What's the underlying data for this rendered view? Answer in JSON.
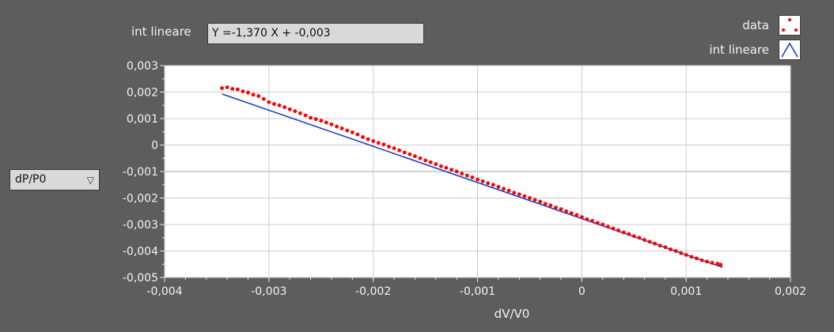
{
  "fit": {
    "label": "int lineare",
    "expression": "Y =-1,370 X +  -0,003"
  },
  "legend": {
    "items": [
      {
        "label": "data",
        "color": "#ff0000",
        "icon": "scatter-dots-icon"
      },
      {
        "label": "int lineare",
        "color": "#1f3fbf",
        "icon": "line-peak-icon"
      }
    ]
  },
  "y_selector": {
    "value": "dP/P0",
    "icon": "triangle-down-icon"
  },
  "chart_data": {
    "type": "scatter",
    "xlabel": "dV/V0",
    "ylabel": "",
    "xlim": [
      -0.004,
      0.002
    ],
    "ylim": [
      -0.005,
      0.003
    ],
    "x_ticks": [
      -0.004,
      -0.003,
      -0.002,
      -0.001,
      0,
      0.001,
      0.002
    ],
    "x_tick_labels": [
      "-0,004",
      "-0,003",
      "-0,002",
      "-0,001",
      "0",
      "0,001",
      "0,002"
    ],
    "y_ticks": [
      0.003,
      0.002,
      0.001,
      0,
      -0.001,
      -0.002,
      -0.003,
      -0.004,
      -0.005
    ],
    "y_tick_labels": [
      "0,003",
      "0,002",
      "0,001",
      "0",
      "-0,001",
      "-0,002",
      "-0,003",
      "-0,004",
      "-0,005"
    ],
    "grid": true,
    "legend_position": "top-right",
    "series": [
      {
        "name": "data",
        "color": "#ff0000",
        "points": [
          [
            -0.00345,
            0.00215
          ],
          [
            -0.0034,
            0.00218
          ],
          [
            -0.00335,
            0.00212
          ],
          [
            -0.0033,
            0.0021
          ],
          [
            -0.00325,
            0.00203
          ],
          [
            -0.0032,
            0.00198
          ],
          [
            -0.00315,
            0.0019
          ],
          [
            -0.0031,
            0.00185
          ],
          [
            -0.00305,
            0.00174
          ],
          [
            -0.003,
            0.00162
          ],
          [
            -0.00295,
            0.00155
          ],
          [
            -0.0029,
            0.0015
          ],
          [
            -0.00285,
            0.00143
          ],
          [
            -0.0028,
            0.00135
          ],
          [
            -0.00275,
            0.00128
          ],
          [
            -0.0027,
            0.0012
          ],
          [
            -0.00265,
            0.00112
          ],
          [
            -0.0026,
            0.00103
          ],
          [
            -0.00255,
            0.00098
          ],
          [
            -0.0025,
            0.00092
          ],
          [
            -0.00245,
            0.00085
          ],
          [
            -0.0024,
            0.00078
          ],
          [
            -0.00235,
            0.0007
          ],
          [
            -0.0023,
            0.00063
          ],
          [
            -0.00225,
            0.00055
          ],
          [
            -0.0022,
            0.00048
          ],
          [
            -0.00215,
            0.0004
          ],
          [
            -0.0021,
            0.0003
          ],
          [
            -0.00205,
            0.00022
          ],
          [
            -0.002,
            0.00015
          ],
          [
            -0.00195,
            8e-05
          ],
          [
            -0.0019,
            2e-05
          ],
          [
            -0.00185,
            -6e-05
          ],
          [
            -0.0018,
            -0.00012
          ],
          [
            -0.00175,
            -0.0002
          ],
          [
            -0.0017,
            -0.00028
          ],
          [
            -0.00165,
            -0.00035
          ],
          [
            -0.0016,
            -0.00042
          ],
          [
            -0.00155,
            -0.0005
          ],
          [
            -0.0015,
            -0.00058
          ],
          [
            -0.00145,
            -0.00065
          ],
          [
            -0.0014,
            -0.00072
          ],
          [
            -0.00135,
            -0.0008
          ],
          [
            -0.0013,
            -0.00086
          ],
          [
            -0.00125,
            -0.00093
          ],
          [
            -0.0012,
            -0.001
          ],
          [
            -0.00115,
            -0.00108
          ],
          [
            -0.0011,
            -0.00115
          ],
          [
            -0.00105,
            -0.00122
          ],
          [
            -0.001,
            -0.0013
          ],
          [
            -0.00095,
            -0.00137
          ],
          [
            -0.0009,
            -0.00144
          ],
          [
            -0.00085,
            -0.0015
          ],
          [
            -0.0008,
            -0.00158
          ],
          [
            -0.00075,
            -0.00165
          ],
          [
            -0.0007,
            -0.00172
          ],
          [
            -0.00065,
            -0.0018
          ],
          [
            -0.0006,
            -0.00186
          ],
          [
            -0.00055,
            -0.00193
          ],
          [
            -0.0005,
            -0.002
          ],
          [
            -0.00045,
            -0.00207
          ],
          [
            -0.0004,
            -0.00214
          ],
          [
            -0.00035,
            -0.00222
          ],
          [
            -0.0003,
            -0.00228
          ],
          [
            -0.00025,
            -0.00236
          ],
          [
            -0.0002,
            -0.00242
          ],
          [
            -0.00015,
            -0.0025
          ],
          [
            -0.0001,
            -0.00257
          ],
          [
            -5e-05,
            -0.00264
          ],
          [
            0.0,
            -0.00272
          ],
          [
            5e-05,
            -0.0028
          ],
          [
            0.0001,
            -0.00286
          ],
          [
            0.00015,
            -0.00294
          ],
          [
            0.0002,
            -0.003
          ],
          [
            0.00025,
            -0.00308
          ],
          [
            0.0003,
            -0.00315
          ],
          [
            0.00035,
            -0.00322
          ],
          [
            0.0004,
            -0.0033
          ],
          [
            0.00045,
            -0.00336
          ],
          [
            0.0005,
            -0.00344
          ],
          [
            0.00055,
            -0.0035
          ],
          [
            0.0006,
            -0.00358
          ],
          [
            0.00065,
            -0.00365
          ],
          [
            0.0007,
            -0.00372
          ],
          [
            0.00075,
            -0.0038
          ],
          [
            0.0008,
            -0.00386
          ],
          [
            0.00085,
            -0.00394
          ],
          [
            0.0009,
            -0.004
          ],
          [
            0.00095,
            -0.00408
          ],
          [
            0.001,
            -0.00415
          ],
          [
            0.00105,
            -0.00422
          ],
          [
            0.0011,
            -0.00428
          ],
          [
            0.00115,
            -0.00435
          ],
          [
            0.0012,
            -0.0044
          ],
          [
            0.00125,
            -0.00445
          ],
          [
            0.0013,
            -0.00448
          ],
          [
            0.00133,
            -0.00452
          ]
        ]
      },
      {
        "name": "int lineare",
        "color": "#1f3fbf",
        "line": [
          [
            -0.00345,
            0.00193
          ],
          [
            0.00135,
            -0.00462
          ]
        ]
      }
    ]
  }
}
